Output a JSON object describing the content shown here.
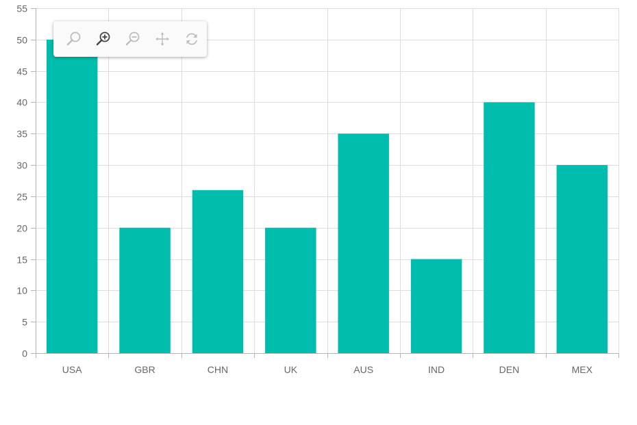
{
  "chart_data": {
    "type": "bar",
    "categories": [
      "USA",
      "GBR",
      "CHN",
      "UK",
      "AUS",
      "IND",
      "DEN",
      "MEX"
    ],
    "values": [
      50,
      20,
      26,
      20,
      35,
      15,
      40,
      30
    ],
    "ylim": [
      0,
      55
    ],
    "yticks": [
      0,
      5,
      10,
      15,
      20,
      25,
      30,
      35,
      40,
      45,
      50,
      55
    ],
    "title": "",
    "xlabel": "",
    "ylabel": "",
    "grid": true,
    "bar_color": "#00bdae",
    "grid_color": "#dddddd",
    "axis_color": "#b5b5b5"
  },
  "toolbar": {
    "tools": [
      {
        "name": "zoom-icon",
        "active": false
      },
      {
        "name": "zoom-in-icon",
        "active": true
      },
      {
        "name": "zoom-out-icon",
        "active": false
      },
      {
        "name": "pan-icon",
        "active": false
      },
      {
        "name": "reset-icon",
        "active": false
      }
    ],
    "active_color": "#444444",
    "inactive_color": "#bdbdbd"
  }
}
